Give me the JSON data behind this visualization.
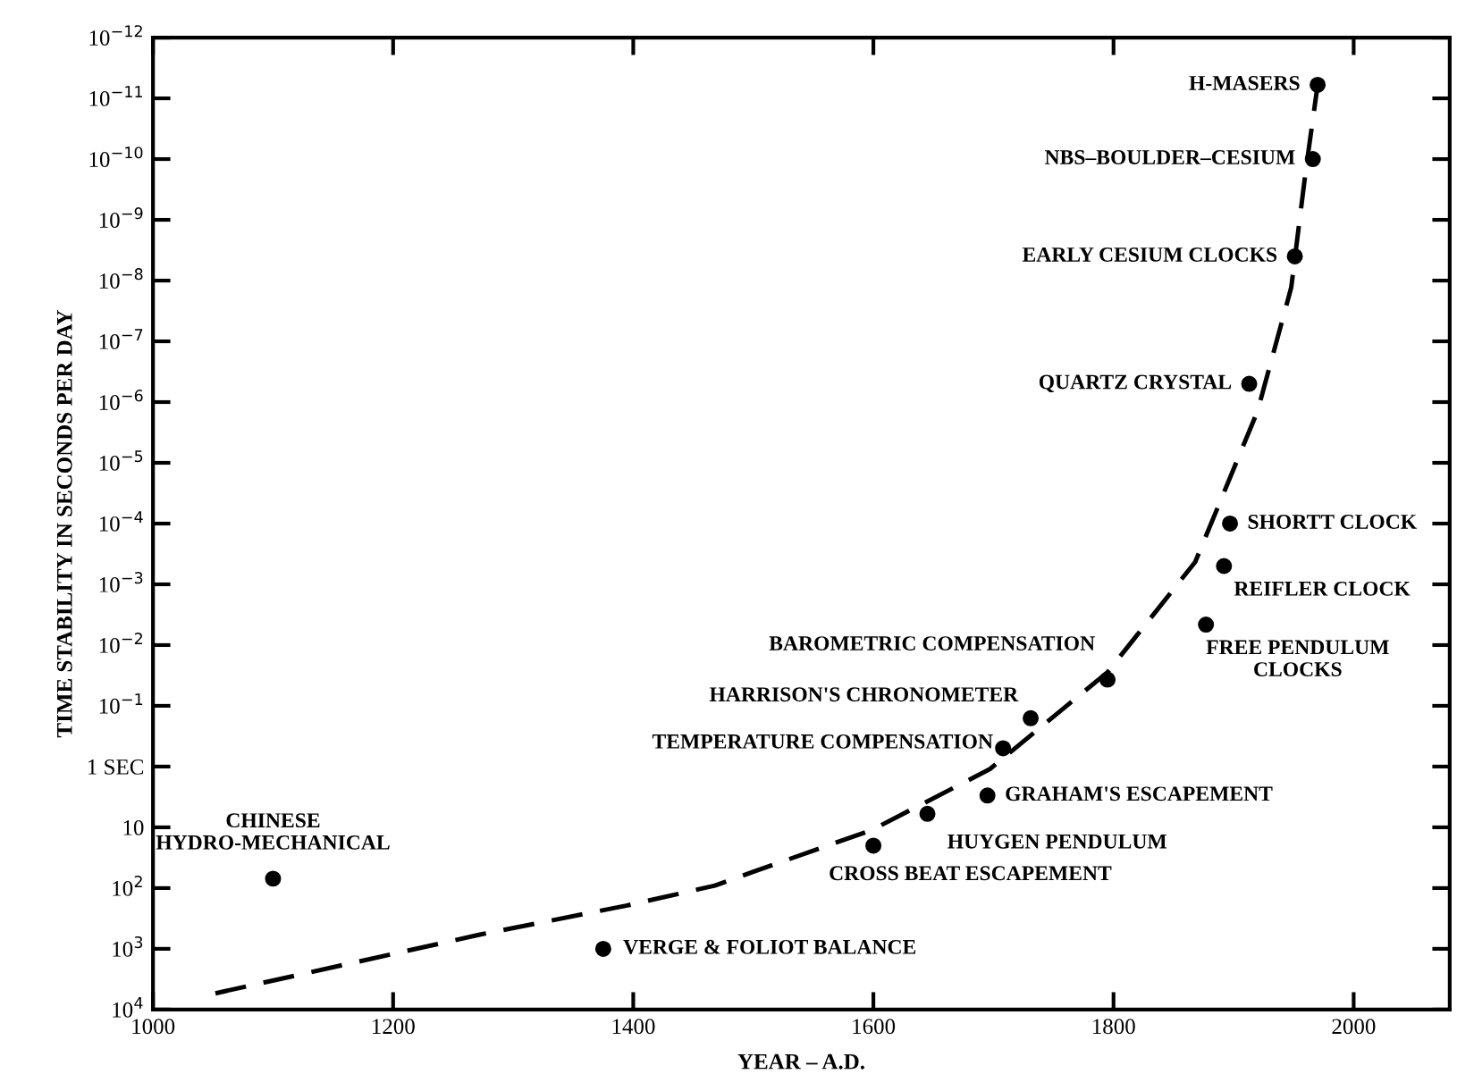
{
  "chart_data": {
    "type": "scatter",
    "xlabel": "YEAR – A.D.",
    "ylabel": "TIME STABILITY IN SECONDS PER DAY",
    "log": "y",
    "grid": false,
    "legend": false,
    "xlim": [
      1000,
      2080
    ],
    "xticks": [
      1000,
      1200,
      1400,
      1600,
      1800,
      2000
    ],
    "ylim": [
      10000,
      1e-12
    ],
    "yticks": [
      {
        "value": 10000,
        "label": "10$^{4}$"
      },
      {
        "value": 1000,
        "label": "10$^{3}$"
      },
      {
        "value": 100,
        "label": "10$^{2}$"
      },
      {
        "value": 10,
        "label": "10"
      },
      {
        "value": 1,
        "label": "1 SEC"
      },
      {
        "value": 0.1,
        "label": "10$^{−1}$"
      },
      {
        "value": 0.01,
        "label": "10$^{−2}$"
      },
      {
        "value": 0.001,
        "label": "10$^{−3}$"
      },
      {
        "value": 0.0001,
        "label": "10$^{−4}$"
      },
      {
        "value": 1e-05,
        "label": "10$^{−5}$"
      },
      {
        "value": 1e-06,
        "label": "10$^{−6}$"
      },
      {
        "value": 1e-07,
        "label": "10$^{−7}$"
      },
      {
        "value": 1e-08,
        "label": "10$^{−8}$"
      },
      {
        "value": 1e-09,
        "label": "10$^{−9}$"
      },
      {
        "value": 1e-10,
        "label": "10$^{−10}$"
      },
      {
        "value": 1e-11,
        "label": "10$^{−11}$"
      },
      {
        "value": 1e-12,
        "label": "10$^{−12}$"
      }
    ],
    "series": [
      {
        "color": "#000000",
        "marker": "circle",
        "x": [
          1100,
          1375,
          1600,
          1645,
          1695,
          1708,
          1731,
          1795,
          1877,
          1892,
          1897,
          1913,
          1951,
          1966,
          1970
        ],
        "values": [
          70,
          1000,
          20,
          6,
          3,
          0.5,
          0.16,
          0.037,
          0.0046,
          0.0005,
          0.0001,
          5e-07,
          4e-09,
          1e-10,
          6e-12
        ]
      },
      {
        "type": "line",
        "color": "#000000",
        "marker": "none",
        "line_style": "dashed",
        "x": [
          1052,
          1273,
          1394,
          1468,
          1500,
          1599,
          1697,
          1795,
          1868,
          1920,
          1948,
          1960,
          1970
        ],
        "values": [
          5400,
          580,
          195,
          91,
          54,
          11,
          1.1,
          0.028,
          0.00043,
          1.4e-06,
          1.3e-08,
          1.6e-10,
          6e-12
        ]
      }
    ],
    "annotations": [
      {
        "text": "CHINESE\nHYDRO-MECHANICAL",
        "x": 1100,
        "y": 70
      },
      {
        "text": "VERGE & FOLIOT BALANCE",
        "x": 1375,
        "y": 1000
      },
      {
        "text": "CROSS BEAT ESCAPEMENT",
        "x": 1600,
        "y": 20
      },
      {
        "text": "HUYGEN PENDULUM",
        "x": 1645,
        "y": 6
      },
      {
        "text": "GRAHAM'S ESCAPEMENT",
        "x": 1695,
        "y": 3
      },
      {
        "text": "TEMPERATURE COMPENSATION",
        "x": 1708,
        "y": 0.5
      },
      {
        "text": "HARRISON'S CHRONOMETER",
        "x": 1731,
        "y": 0.16
      },
      {
        "text": "BAROMETRIC COMPENSATION",
        "x": 1795,
        "y": 0.037
      },
      {
        "text": "FREE PENDULUM\nCLOCKS",
        "x": 1877,
        "y": 0.0046
      },
      {
        "text": "REIFLER CLOCK",
        "x": 1892,
        "y": 0.0005
      },
      {
        "text": "SHORTT CLOCK",
        "x": 1897,
        "y": 0.0001
      },
      {
        "text": "QUARTZ CRYSTAL",
        "x": 1913,
        "y": 5e-07
      },
      {
        "text": "EARLY CESIUM CLOCKS",
        "x": 1951,
        "y": 4e-09
      },
      {
        "text": "NBS–BOULDER–CESIUM",
        "x": 1966,
        "y": 1e-10
      },
      {
        "text": "H-MASERS",
        "x": 1970,
        "y": 6e-12
      }
    ]
  }
}
